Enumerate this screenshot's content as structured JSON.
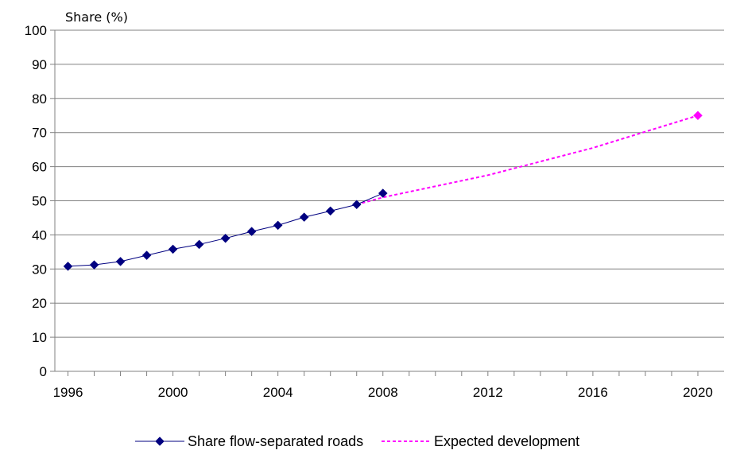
{
  "chart_data": {
    "type": "line",
    "title": "",
    "xlabel": "",
    "ylabel": "Share (%)",
    "xlim": [
      1995.5,
      2021
    ],
    "ylim": [
      0,
      100
    ],
    "x_ticks": [
      "1996",
      "2000",
      "2004",
      "2008",
      "2012",
      "2016",
      "2020"
    ],
    "y_ticks": [
      "0",
      "10",
      "20",
      "30",
      "40",
      "50",
      "60",
      "70",
      "80",
      "90",
      "100"
    ],
    "grid": "horizontal",
    "legend_position": "bottom",
    "series": [
      {
        "name": "Share flow-separated roads",
        "color": "#000080",
        "style": "solid-with-diamond-markers",
        "x": [
          1996,
          1997,
          1998,
          1999,
          2000,
          2001,
          2002,
          2003,
          2004,
          2005,
          2006,
          2007,
          2008
        ],
        "y": [
          30.8,
          31.2,
          32.2,
          34.0,
          35.8,
          37.2,
          39.0,
          41.0,
          42.8,
          45.2,
          47.0,
          48.9,
          52.2
        ]
      },
      {
        "name": "Expected development",
        "color": "#ff00ff",
        "style": "dashed",
        "x": [
          2007,
          2008,
          2012,
          2016,
          2020
        ],
        "y": [
          48.9,
          51.0,
          57.5,
          65.5,
          75.0
        ],
        "marker_at_end": true
      }
    ]
  }
}
